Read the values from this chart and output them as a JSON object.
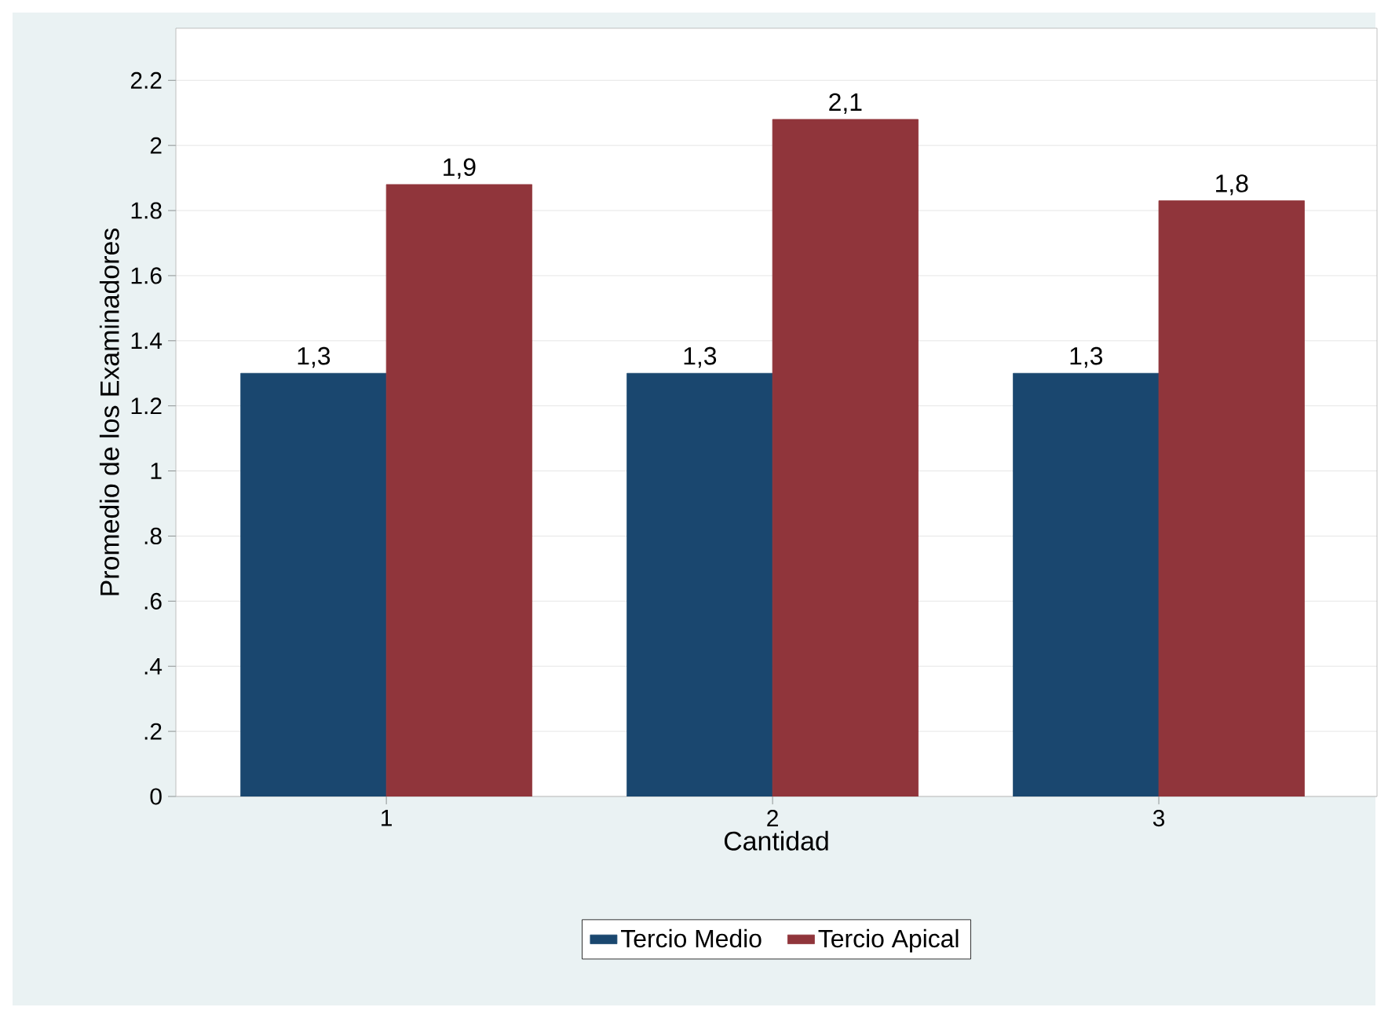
{
  "chart_data": {
    "type": "bar",
    "xlabel": "Cantidad",
    "ylabel": "Promedio de los Examinadores",
    "categories": [
      "1",
      "2",
      "3"
    ],
    "series": [
      {
        "name": "Tercio Medio",
        "color": "#1a476f",
        "values": [
          1.3,
          1.3,
          1.3
        ],
        "value_labels": [
          "1,3",
          "1,3",
          "1,3"
        ]
      },
      {
        "name": "Tercio Apical",
        "color": "#90353b",
        "values": [
          1.88,
          2.08,
          1.83
        ],
        "value_labels": [
          "1,9",
          "2,1",
          "1,8"
        ]
      }
    ],
    "ylim": [
      0,
      2.36
    ],
    "yticks": [
      0,
      {
        "value": 0.2,
        "label": ".2"
      },
      {
        "value": 0.4,
        "label": ".4"
      },
      {
        "value": 0.6,
        "label": ".6"
      },
      {
        "value": 0.8,
        "label": ".8"
      },
      1,
      1.2,
      1.4,
      1.6,
      1.8,
      2,
      2.2
    ],
    "grid": "y",
    "legend": "bottom"
  }
}
